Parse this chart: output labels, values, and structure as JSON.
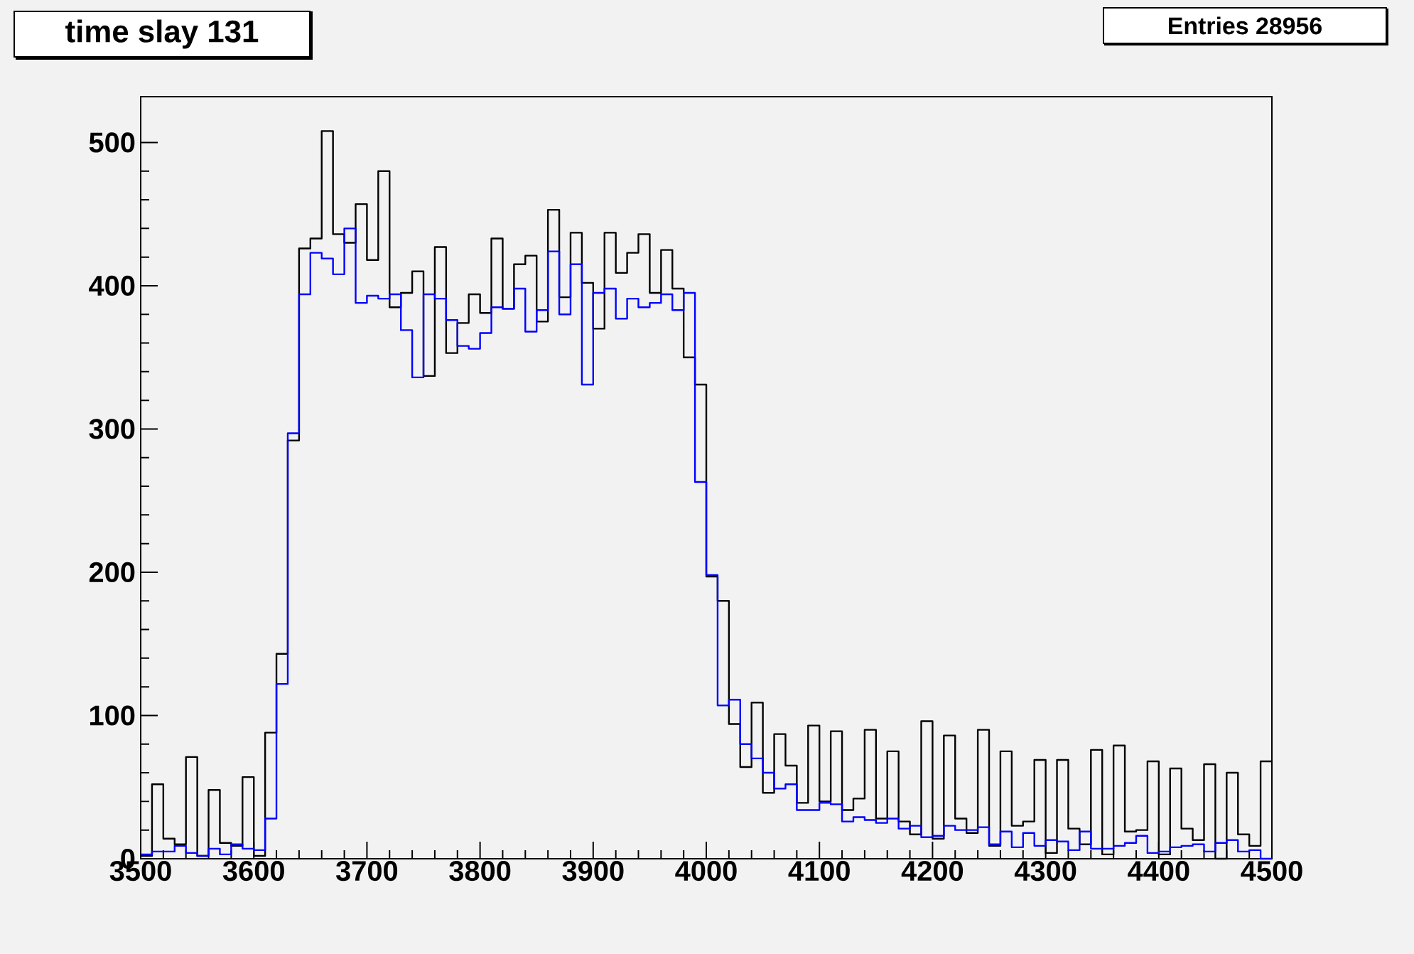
{
  "chart_data": {
    "type": "histogram",
    "title": "time slay 131",
    "annotations": [
      "Entries      28956"
    ],
    "bins": [
      3500,
      3510,
      3520,
      3530,
      3540,
      3550,
      3560,
      3570,
      3580,
      3590,
      3600,
      3610,
      3620,
      3630,
      3640,
      3650,
      3660,
      3670,
      3680,
      3690,
      3700,
      3710,
      3720,
      3730,
      3740,
      3750,
      3760,
      3770,
      3780,
      3790,
      3800,
      3810,
      3820,
      3830,
      3840,
      3850,
      3860,
      3870,
      3880,
      3890,
      3900,
      3910,
      3920,
      3930,
      3940,
      3950,
      3960,
      3970,
      3980,
      3990,
      4000,
      4010,
      4020,
      4030,
      4040,
      4050,
      4060,
      4070,
      4080,
      4090,
      4100,
      4110,
      4120,
      4130,
      4140,
      4150,
      4160,
      4170,
      4180,
      4190,
      4200,
      4210,
      4220,
      4230,
      4240,
      4250,
      4260,
      4270,
      4280,
      4290,
      4300,
      4310,
      4320,
      4330,
      4340,
      4350,
      4360,
      4370,
      4380,
      4390,
      4400,
      4410,
      4420,
      4430,
      4440,
      4450,
      4460,
      4470,
      4480,
      4490,
      4500
    ],
    "series": [
      {
        "color": "#000000",
        "values": [
          2,
          52,
          14,
          10,
          71,
          2,
          48,
          11,
          9,
          57,
          2,
          88,
          143,
          292,
          426,
          433,
          508,
          436,
          430,
          457,
          418,
          480,
          385,
          395,
          410,
          337,
          427,
          353,
          374,
          394,
          381,
          433,
          384,
          415,
          421,
          375,
          453,
          392,
          437,
          402,
          370,
          437,
          409,
          423,
          436,
          395,
          425,
          398,
          350,
          331,
          197,
          180,
          94,
          64,
          109,
          46,
          87,
          65,
          39,
          93,
          40,
          89,
          34,
          42,
          90,
          28,
          75,
          26,
          17,
          96,
          14,
          86,
          28,
          18,
          90,
          9,
          75,
          23,
          26,
          69,
          4,
          69,
          21,
          10,
          76,
          3,
          79,
          19,
          20,
          68,
          3,
          63,
          21,
          13,
          66,
          0,
          60,
          17,
          9,
          68
        ]
      },
      {
        "color": "#0000ff",
        "values": [
          3,
          5,
          5,
          9,
          4,
          2,
          7,
          3,
          10,
          7,
          6,
          28,
          122,
          297,
          394,
          423,
          419,
          408,
          440,
          388,
          393,
          391,
          394,
          369,
          336,
          394,
          391,
          376,
          358,
          356,
          367,
          385,
          384,
          398,
          368,
          383,
          424,
          380,
          415,
          331,
          395,
          398,
          377,
          391,
          385,
          388,
          394,
          383,
          395,
          263,
          198,
          107,
          111,
          80,
          70,
          60,
          49,
          52,
          34,
          34,
          39,
          38,
          26,
          29,
          27,
          25,
          28,
          21,
          23,
          15,
          16,
          23,
          20,
          20,
          22,
          10,
          19,
          8,
          18,
          9,
          13,
          12,
          6,
          19,
          7,
          7,
          9,
          11,
          16,
          4,
          5,
          8,
          9,
          10,
          5,
          11,
          13,
          5,
          6,
          0
        ]
      }
    ],
    "xlim": [
      3500,
      4500
    ],
    "ylim": [
      0,
      532
    ],
    "xticks": [
      3500,
      3600,
      3700,
      3800,
      3900,
      4000,
      4100,
      4200,
      4300,
      4400,
      4500
    ],
    "yticks": [
      0,
      100,
      200,
      300,
      400,
      500
    ]
  }
}
